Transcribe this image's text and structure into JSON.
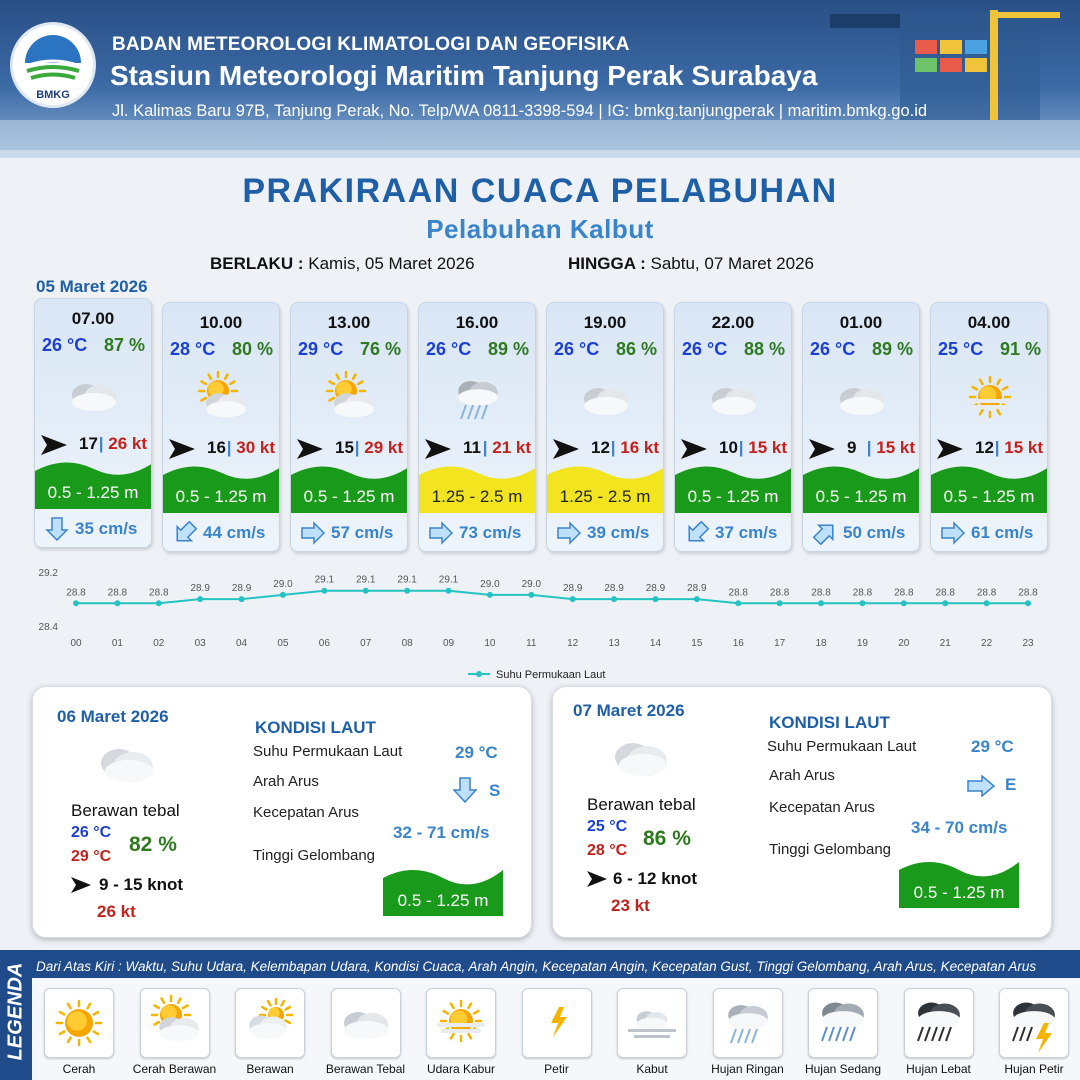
{
  "header": {
    "agency": "BADAN METEOROLOGI KLIMATOLOGI DAN GEOFISIKA",
    "station": "Stasiun Meteorologi Maritim Tanjung Perak Surabaya",
    "address": "Jl. Kalimas Baru 97B, Tanjung Perak, No. Telp/WA 0811-3398-594 | IG: bmkg.tanjungperak | maritim.bmkg.go.id",
    "logo_text": "BMKG"
  },
  "title": "PRAKIRAAN CUACA PELABUHAN",
  "subtitle": "Pelabuhan Kalbut",
  "validity": {
    "from_label": "BERLAKU :",
    "from_value": "Kamis, 05 Maret 2026",
    "to_label": "HINGGA :",
    "to_value": "Sabtu, 07 Maret 2026"
  },
  "day1_date": "05 Maret 2026",
  "forecasts": [
    {
      "time": "07.00",
      "temp": "26 °C",
      "hum": "87 %",
      "icon": "berawan-tebal",
      "wind": "17",
      "sep": "|",
      "gust": "26 kt",
      "wave": "0.5 - 1.25 m",
      "wave_color": "#1a9a1a",
      "current_dir": "S",
      "current": "35 cm/s"
    },
    {
      "time": "10.00",
      "temp": "28 °C",
      "hum": "80 %",
      "icon": "cerah-berawan",
      "wind": "16",
      "sep": "|",
      "gust": "30 kt",
      "wave": "0.5 - 1.25 m",
      "wave_color": "#1a9a1a",
      "current_dir": "SW",
      "current": "44 cm/s"
    },
    {
      "time": "13.00",
      "temp": "29 °C",
      "hum": "76 %",
      "icon": "cerah-berawan",
      "wind": "15",
      "sep": "|",
      "gust": "29 kt",
      "wave": "0.5 - 1.25 m",
      "wave_color": "#1a9a1a",
      "current_dir": "E",
      "current": "57 cm/s"
    },
    {
      "time": "16.00",
      "temp": "26 °C",
      "hum": "89 %",
      "icon": "hujan-ringan",
      "wind": "11",
      "sep": "|",
      "gust": "21 kt",
      "wave": "1.25 - 2.5 m",
      "wave_color": "#f2e51f",
      "current_dir": "E",
      "current": "73 cm/s"
    },
    {
      "time": "19.00",
      "temp": "26 °C",
      "hum": "86 %",
      "icon": "berawan-tebal",
      "wind": "12",
      "sep": "|",
      "gust": "16 kt",
      "wave": "1.25 - 2.5 m",
      "wave_color": "#f2e51f",
      "current_dir": "E",
      "current": "39 cm/s"
    },
    {
      "time": "22.00",
      "temp": "26 °C",
      "hum": "88 %",
      "icon": "berawan-tebal",
      "wind": "10",
      "sep": "|",
      "gust": "15 kt",
      "wave": "0.5 - 1.25 m",
      "wave_color": "#1a9a1a",
      "current_dir": "SW",
      "current": "37 cm/s"
    },
    {
      "time": "01.00",
      "temp": "26 °C",
      "hum": "89 %",
      "icon": "berawan-tebal",
      "wind": "9",
      "sep": "|",
      "gust": "15 kt",
      "wave": "0.5 - 1.25 m",
      "wave_color": "#1a9a1a",
      "current_dir": "NE",
      "current": "50 cm/s"
    },
    {
      "time": "04.00",
      "temp": "25 °C",
      "hum": "91 %",
      "icon": "udara-kabur",
      "wind": "12",
      "sep": "|",
      "gust": "15 kt",
      "wave": "0.5 - 1.25 m",
      "wave_color": "#1a9a1a",
      "current_dir": "E",
      "current": "61 cm/s"
    }
  ],
  "chart_data": {
    "type": "line",
    "title": "",
    "series": [
      {
        "name": "Suhu Permukaan Laut",
        "x": [
          "00",
          "01",
          "02",
          "03",
          "04",
          "05",
          "06",
          "07",
          "08",
          "09",
          "10",
          "11",
          "12",
          "13",
          "14",
          "15",
          "16",
          "17",
          "18",
          "19",
          "20",
          "21",
          "22",
          "23"
        ],
        "values": [
          28.8,
          28.8,
          28.8,
          28.9,
          28.9,
          29.0,
          29.1,
          29.1,
          29.1,
          29.1,
          29.0,
          29.0,
          28.9,
          28.9,
          28.9,
          28.9,
          28.8,
          28.8,
          28.8,
          28.8,
          28.8,
          28.8,
          28.8,
          28.8
        ],
        "color": "#25c2c2"
      }
    ],
    "ylim": [
      28.4,
      29.2
    ],
    "yticks": [
      "29.2",
      "28.4"
    ],
    "legend_position": "bottom-center"
  },
  "days": [
    {
      "date": "06 Maret 2026",
      "icon": "berawan-tebal",
      "condition": "Berawan tebal",
      "tmin": "26 °C",
      "tmax": "29 °C",
      "hum": "82 %",
      "wind": "9  - 15 knot",
      "gust": "26 kt",
      "kondisi_title": "KONDISI LAUT",
      "sst_label": "Suhu Permukaan Laut",
      "sst": "29 °C",
      "dir_label": "Arah Arus",
      "dir": "S",
      "speed_label": "Kecepatan Arus",
      "speed": "32  - 71 cm/s",
      "wave_label": "Tinggi Gelombang",
      "wave": "0.5 - 1.25 m"
    },
    {
      "date": "07 Maret 2026",
      "icon": "berawan-tebal",
      "condition": "Berawan tebal",
      "tmin": "25 °C",
      "tmax": "28 °C",
      "hum": "86 %",
      "wind": "6  - 12 knot",
      "gust": "23 kt",
      "kondisi_title": "KONDISI LAUT",
      "sst_label": "Suhu Permukaan Laut",
      "sst": "29 °C",
      "dir_label": "Arah Arus",
      "dir": "E",
      "speed_label": "Kecepatan Arus",
      "speed": "34  - 70 cm/s",
      "wave_label": "Tinggi Gelombang",
      "wave": "0.5 - 1.25 m"
    }
  ],
  "legend": {
    "title": "LEGENDA",
    "description": "Dari Atas Kiri : Waktu, Suhu Udara, Kelembapan Udara, Kondisi Cuaca, Arah Angin, Kecepatan Angin, Kecepatan Gust, Tinggi Gelombang, Arah Arus, Kecepatan Arus",
    "items": [
      {
        "label": "Cerah",
        "icon": "cerah"
      },
      {
        "label": "Cerah Berawan",
        "icon": "cerah-berawan"
      },
      {
        "label": "Berawan",
        "icon": "berawan"
      },
      {
        "label": "Berawan Tebal",
        "icon": "berawan-tebal"
      },
      {
        "label": "Udara Kabur",
        "icon": "udara-kabur"
      },
      {
        "label": "Petir",
        "icon": "petir"
      },
      {
        "label": "Kabut",
        "icon": "kabut"
      },
      {
        "label": "Hujan Ringan",
        "icon": "hujan-ringan"
      },
      {
        "label": "Hujan Sedang",
        "icon": "hujan-sedang"
      },
      {
        "label": "Hujan Lebat",
        "icon": "hujan-lebat"
      },
      {
        "label": "Hujan Petir",
        "icon": "hujan-petir"
      }
    ]
  }
}
